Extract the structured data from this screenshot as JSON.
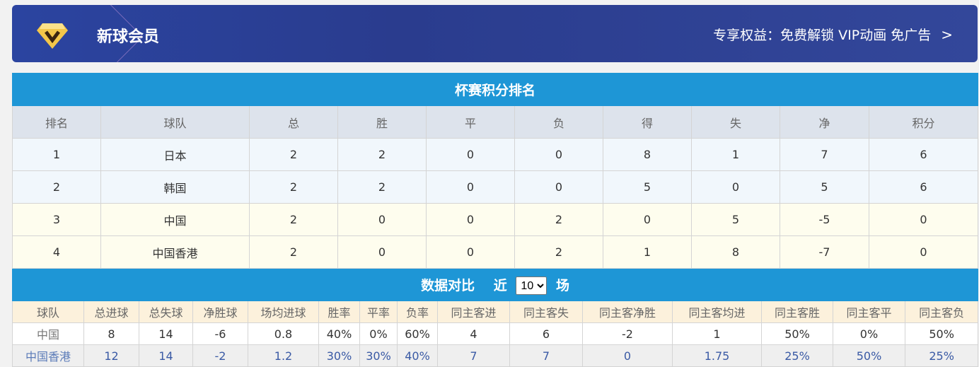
{
  "banner": {
    "title": "新球会员",
    "benefits": "专享权益：免费解锁 VIP动画 免广告",
    "icon": "diamond-v-icon"
  },
  "standings": {
    "title": "杯赛积分排名",
    "headers": [
      "排名",
      "球队",
      "总",
      "胜",
      "平",
      "负",
      "得",
      "失",
      "净",
      "积分"
    ],
    "rows": [
      [
        "1",
        "日本",
        "2",
        "2",
        "0",
        "0",
        "8",
        "1",
        "7",
        "6"
      ],
      [
        "2",
        "韩国",
        "2",
        "2",
        "0",
        "0",
        "5",
        "0",
        "5",
        "6"
      ],
      [
        "3",
        "中国",
        "2",
        "0",
        "0",
        "2",
        "0",
        "5",
        "-5",
        "0"
      ],
      [
        "4",
        "中国香港",
        "2",
        "0",
        "0",
        "2",
        "1",
        "8",
        "-7",
        "0"
      ]
    ]
  },
  "comparison": {
    "title": "数据对比",
    "recent_prefix": "近",
    "recent_value": "10",
    "recent_suffix": "场",
    "headers": [
      "球队",
      "总进球",
      "总失球",
      "净胜球",
      "场均进球",
      "胜率",
      "平率",
      "负率",
      "同主客进",
      "同主客失",
      "同主客净胜",
      "同主客均进",
      "同主客胜",
      "同主客平",
      "同主客负"
    ],
    "rows": [
      [
        "中国",
        "8",
        "14",
        "-6",
        "0.8",
        "40%",
        "0%",
        "60%",
        "4",
        "6",
        "-2",
        "1",
        "50%",
        "0%",
        "50%"
      ],
      [
        "中国香港",
        "12",
        "14",
        "-2",
        "1.2",
        "30%",
        "30%",
        "40%",
        "7",
        "7",
        "0",
        "1.75",
        "25%",
        "50%",
        "25%"
      ]
    ]
  }
}
